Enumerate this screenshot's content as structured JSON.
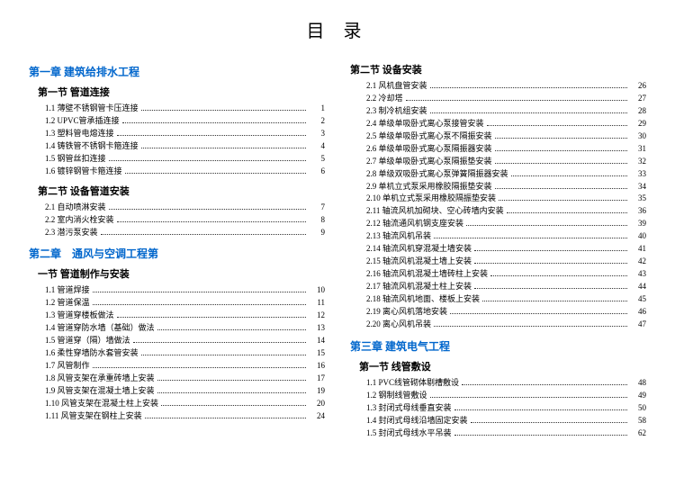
{
  "title": "目 录",
  "left": {
    "chapter1": {
      "title": "第一章  建筑给排水工程"
    },
    "c1s1": {
      "title": "第一节  管道连接",
      "items": [
        {
          "n": "1.1",
          "t": "薄壁不锈钢管卡压连接",
          "p": "1"
        },
        {
          "n": "1.2",
          "t": "UPVC管承插连接",
          "p": "2"
        },
        {
          "n": "1.3",
          "t": "塑料管电熔连接",
          "p": "3"
        },
        {
          "n": "1.4",
          "t": "铸铁管不锈钢卡箍连接",
          "p": "4"
        },
        {
          "n": "1.5",
          "t": "钢管丝扣连接",
          "p": "5"
        },
        {
          "n": "1.6",
          "t": "镀锌钢管卡箍连接",
          "p": "6"
        }
      ]
    },
    "c1s2": {
      "title": "第二节  设备管道安装",
      "items": [
        {
          "n": "2.1",
          "t": "自动喷淋安装",
          "p": "7"
        },
        {
          "n": "2.2",
          "t": "室内消火栓安装",
          "p": "8"
        },
        {
          "n": "2.3",
          "t": "潜污泵安装",
          "p": "9"
        }
      ]
    },
    "chapter2": {
      "title": "第二章　通风与空调工程第",
      "sub": "一节  管道制作与安装"
    },
    "c2s1": {
      "items": [
        {
          "n": "1.1",
          "t": "管道焊接",
          "p": "10"
        },
        {
          "n": "1.2",
          "t": "管道保温",
          "p": "11"
        },
        {
          "n": "1.3",
          "t": "管道穿楼板做法",
          "p": "12"
        },
        {
          "n": "1.4",
          "t": "管道穿防水墙（基础）做法",
          "p": "13"
        },
        {
          "n": "1.5",
          "t": "管道穿（隔）墙做法",
          "p": "14"
        },
        {
          "n": "1.6",
          "t": "柔性穿墙防水套管安装",
          "p": "15"
        },
        {
          "n": "1.7",
          "t": "风管制作",
          "p": "16"
        },
        {
          "n": "1.8",
          "t": "风管支架在承重砖墙上安装",
          "p": "17"
        },
        {
          "n": "1.9",
          "t": "风管支架在混凝土墙上安装",
          "p": "19"
        },
        {
          "n": "1.10",
          "t": "风管支架在混凝土柱上安装",
          "p": "20"
        },
        {
          "n": "1.11",
          "t": "风管支架在钢柱上安装",
          "p": "24"
        }
      ]
    }
  },
  "right": {
    "c2s2": {
      "title": "第二节  设备安装",
      "items": [
        {
          "n": "2.1",
          "t": "风机盘管安装",
          "p": "26"
        },
        {
          "n": "2.2",
          "t": "冷却塔",
          "p": "27"
        },
        {
          "n": "2.3",
          "t": "制冷机组安装",
          "p": "28"
        },
        {
          "n": "2.4",
          "t": "单级单吸卧式离心泵接管安装",
          "p": "29"
        },
        {
          "n": "2.5",
          "t": "单级单吸卧式离心泵不隔振安装",
          "p": "30"
        },
        {
          "n": "2.6",
          "t": "单级单吸卧式离心泵隔振器安装",
          "p": "31"
        },
        {
          "n": "2.7",
          "t": "单级单吸卧式离心泵隔振垫安装",
          "p": "32"
        },
        {
          "n": "2.8",
          "t": "单级双吸卧式离心泵弹簧隔振器安装",
          "p": "33"
        },
        {
          "n": "2.9",
          "t": "单机立式泵采用橡胶隔振垫安装",
          "p": "34"
        },
        {
          "n": "2.10",
          "t": "单机立式泵采用橡胶隔振垫安装",
          "p": "35"
        },
        {
          "n": "2.11",
          "t": "轴流风机加砌块、空心砖墙内安装",
          "p": "36"
        },
        {
          "n": "2.12",
          "t": "轴流通风机钢支座安装",
          "p": "39"
        },
        {
          "n": "2.13",
          "t": "轴流风机吊装",
          "p": "40"
        },
        {
          "n": "2.14",
          "t": "轴流风机穿混凝土墙安装",
          "p": "41"
        },
        {
          "n": "2.15",
          "t": "轴流风机混凝土墙上安装",
          "p": "42"
        },
        {
          "n": "2.16",
          "t": "轴流风机混凝土墙砖柱上安装",
          "p": "43"
        },
        {
          "n": "2.17",
          "t": "轴流风机混凝土柱上安装",
          "p": "44"
        },
        {
          "n": "2.18",
          "t": "轴流风机地面、楼板上安装",
          "p": "45"
        },
        {
          "n": "2.19",
          "t": "离心风机落地安装",
          "p": "46"
        },
        {
          "n": "2.20",
          "t": "离心风机吊装",
          "p": "47"
        }
      ]
    },
    "chapter3": {
      "title": "第三章  建筑电气工程"
    },
    "c3s1": {
      "title": "第一节  线管敷设",
      "items": [
        {
          "n": "1.1",
          "t": "PVC线管砌体剔槽敷设",
          "p": "48"
        },
        {
          "n": "1.2",
          "t": "钢制线管敷设",
          "p": "49"
        },
        {
          "n": "1.3",
          "t": "封闭式母线垂直安装",
          "p": "50"
        },
        {
          "n": "1.4",
          "t": "封闭式母线沿墙固定安装",
          "p": "58"
        },
        {
          "n": "1.5",
          "t": "封闭式母线水平吊装",
          "p": "62"
        }
      ]
    }
  }
}
